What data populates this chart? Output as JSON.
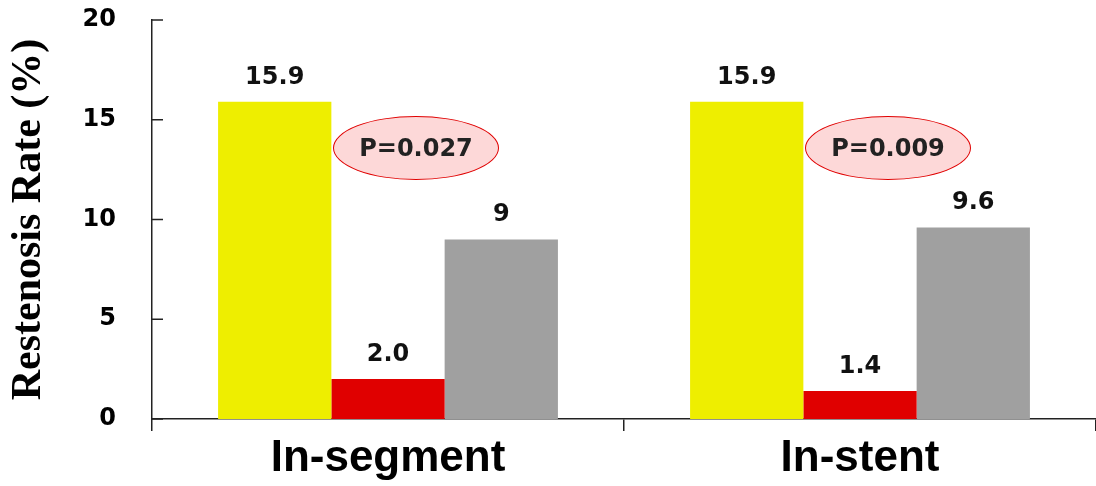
{
  "chart_data": {
    "type": "bar",
    "ylabel": "Restenosis Rate (%)",
    "categories": [
      "In-segment",
      "In-stent"
    ],
    "series": [
      {
        "color": "#eeee00",
        "values": [
          15.9,
          15.9
        ],
        "value_labels": [
          "15.9",
          "15.9"
        ]
      },
      {
        "color": "#e00000",
        "values": [
          2.0,
          1.4
        ],
        "value_labels": [
          "2.0",
          "1.4"
        ]
      },
      {
        "color": "#a0a0a0",
        "values": [
          9,
          9.6
        ],
        "value_labels": [
          "9",
          "9.6"
        ]
      }
    ],
    "ylim": [
      0,
      20
    ],
    "yticks": [
      0,
      5,
      10,
      15,
      20
    ],
    "annotations": [
      "P=0.027",
      "P=0.009"
    ]
  }
}
